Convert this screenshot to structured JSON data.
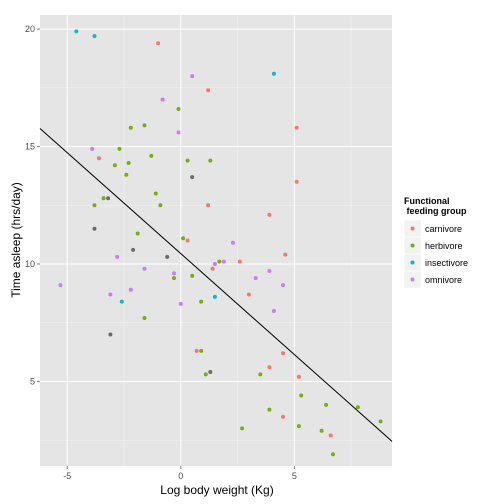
{
  "chart_data": {
    "type": "scatter",
    "xlabel": "Log body weight (Kg)",
    "ylabel": "Time asleep (hrs/day)",
    "xlim": [
      -6.2,
      9.3
    ],
    "ylim": [
      1.4,
      20.6
    ],
    "xticks": [
      -5,
      0,
      5
    ],
    "yticks": [
      5,
      10,
      15,
      20
    ],
    "grid": true,
    "background": "#e5e5e5",
    "legend": {
      "title_lines": [
        "Functional",
        " feeding group"
      ],
      "placement": "right"
    },
    "series": [
      {
        "name": "carnivore",
        "color": "#f8766d",
        "points": [
          [
            -1.0,
            19.4
          ],
          [
            1.2,
            17.4
          ],
          [
            -3.6,
            14.5
          ],
          [
            5.1,
            15.8
          ],
          [
            5.1,
            13.5
          ],
          [
            1.2,
            12.5
          ],
          [
            3.9,
            12.1
          ],
          [
            0.3,
            11.0
          ],
          [
            2.6,
            10.1
          ],
          [
            4.6,
            10.4
          ],
          [
            1.4,
            9.8
          ],
          [
            3.0,
            8.7
          ],
          [
            0.7,
            6.3
          ],
          [
            3.9,
            5.6
          ],
          [
            4.5,
            6.2
          ],
          [
            5.2,
            5.2
          ],
          [
            4.5,
            3.5
          ],
          [
            6.6,
            2.7
          ]
        ]
      },
      {
        "name": "herbivore",
        "color": "#7cae00",
        "points": [
          [
            -0.1,
            16.6
          ],
          [
            -1.6,
            15.9
          ],
          [
            -2.2,
            15.8
          ],
          [
            -1.3,
            14.6
          ],
          [
            0.3,
            14.4
          ],
          [
            1.3,
            14.4
          ],
          [
            -2.7,
            14.9
          ],
          [
            -2.9,
            14.2
          ],
          [
            -2.3,
            14.3
          ],
          [
            -2.4,
            13.8
          ],
          [
            -1.1,
            13.0
          ],
          [
            -3.4,
            12.8
          ],
          [
            -3.8,
            12.5
          ],
          [
            -0.9,
            12.5
          ],
          [
            -1.9,
            11.3
          ],
          [
            0.1,
            11.1
          ],
          [
            1.7,
            10.1
          ],
          [
            0.5,
            9.5
          ],
          [
            -0.3,
            9.4
          ],
          [
            0.9,
            8.4
          ],
          [
            -1.6,
            7.7
          ],
          [
            0.9,
            6.3
          ],
          [
            1.1,
            5.3
          ],
          [
            3.5,
            5.3
          ],
          [
            3.9,
            3.8
          ],
          [
            5.3,
            4.4
          ],
          [
            6.4,
            4.0
          ],
          [
            7.8,
            3.9
          ],
          [
            8.8,
            3.3
          ],
          [
            2.7,
            3.0
          ],
          [
            5.2,
            3.1
          ],
          [
            6.2,
            2.9
          ],
          [
            6.7,
            1.9
          ]
        ]
      },
      {
        "name": "insectivore",
        "color": "#00bfc4",
        "points": [
          [
            -4.6,
            19.9
          ],
          [
            -3.8,
            19.7
          ],
          [
            4.1,
            18.1
          ],
          [
            1.5,
            8.6
          ],
          [
            -2.6,
            8.4
          ]
        ]
      },
      {
        "name": "omnivore",
        "color": "#c77cff",
        "points": [
          [
            0.5,
            18.0
          ],
          [
            -0.8,
            17.0
          ],
          [
            -0.1,
            15.6
          ],
          [
            -3.9,
            14.9
          ],
          [
            2.3,
            10.9
          ],
          [
            -2.8,
            10.3
          ],
          [
            1.9,
            10.1
          ],
          [
            1.5,
            10.0
          ],
          [
            -1.6,
            9.8
          ],
          [
            -0.3,
            9.6
          ],
          [
            3.9,
            9.7
          ],
          [
            3.3,
            9.4
          ],
          [
            -5.3,
            9.1
          ],
          [
            4.5,
            9.1
          ],
          [
            -2.2,
            8.9
          ],
          [
            -3.1,
            8.7
          ],
          [
            0.0,
            8.3
          ],
          [
            4.1,
            8.0
          ]
        ]
      },
      {
        "name": "",
        "color": "#6b6b6b",
        "points": [
          [
            -3.2,
            12.8
          ],
          [
            -3.8,
            11.5
          ],
          [
            -2.1,
            10.6
          ],
          [
            -0.6,
            10.3
          ],
          [
            0.5,
            13.7
          ],
          [
            -3.1,
            7.0
          ],
          [
            1.3,
            5.4
          ]
        ]
      }
    ],
    "regression_line": {
      "color": "#000000",
      "points": [
        [
          -6.2,
          15.77
        ],
        [
          9.3,
          2.45
        ]
      ]
    }
  }
}
